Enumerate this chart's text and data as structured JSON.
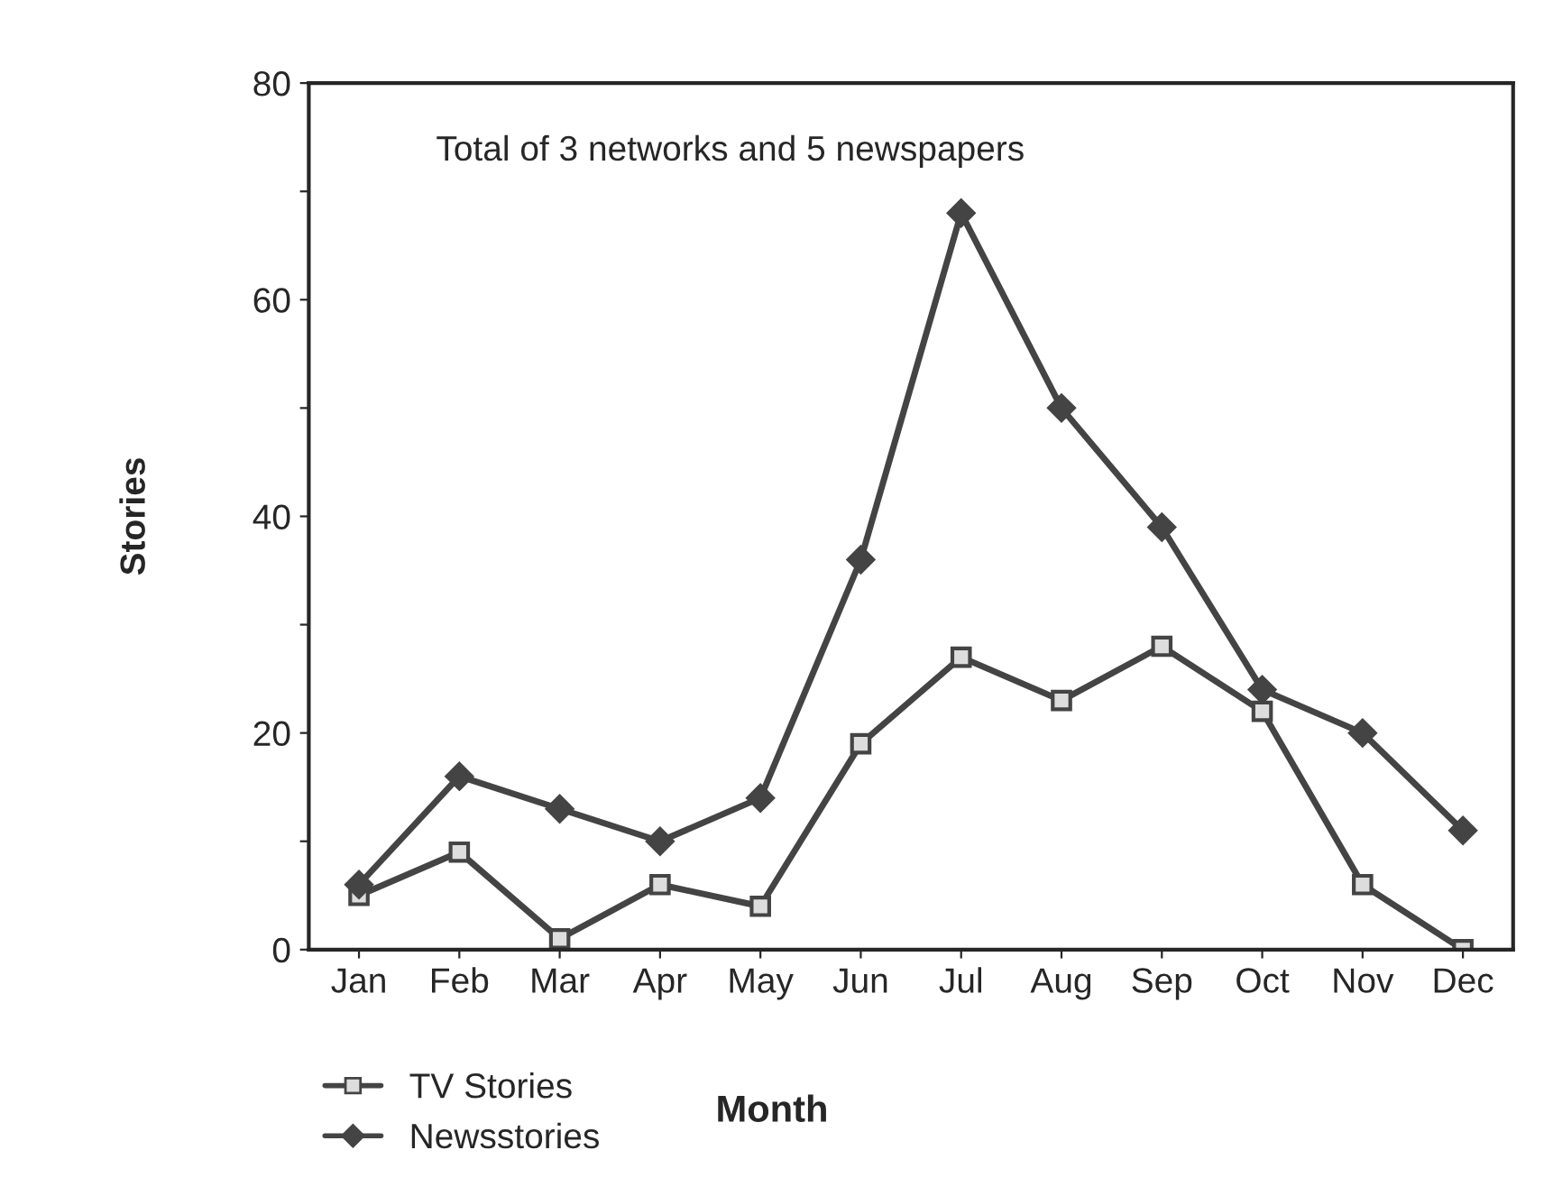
{
  "chart_data": {
    "type": "line",
    "xlabel": "Month",
    "ylabel": "Stories",
    "annotations": [
      "Total of 3 networks and 5 newspapers"
    ],
    "categories": [
      "Jan",
      "Feb",
      "Mar",
      "Apr",
      "May",
      "Jun",
      "Jul",
      "Aug",
      "Sep",
      "Oct",
      "Nov",
      "Dec"
    ],
    "series": [
      {
        "name": "TV Stories",
        "color": "#444444",
        "marker": "square",
        "values": [
          5,
          9,
          1,
          6,
          4,
          19,
          27,
          23,
          28,
          22,
          6,
          0
        ]
      },
      {
        "name": "Newsstories",
        "color": "#444444",
        "marker": "diamond",
        "values": [
          6,
          16,
          13,
          10,
          14,
          36,
          68,
          50,
          39,
          24,
          20,
          11
        ]
      }
    ],
    "ylim": [
      0,
      80
    ],
    "yticks": [
      0,
      {
        "value": 10,
        "label": null
      },
      20,
      {
        "value": 30,
        "label": null
      },
      40,
      {
        "value": 50,
        "label": null
      },
      60,
      {
        "value": 70,
        "label": null
      },
      80
    ],
    "grid": false,
    "legend": "bottom left",
    "line_style": "solid"
  }
}
